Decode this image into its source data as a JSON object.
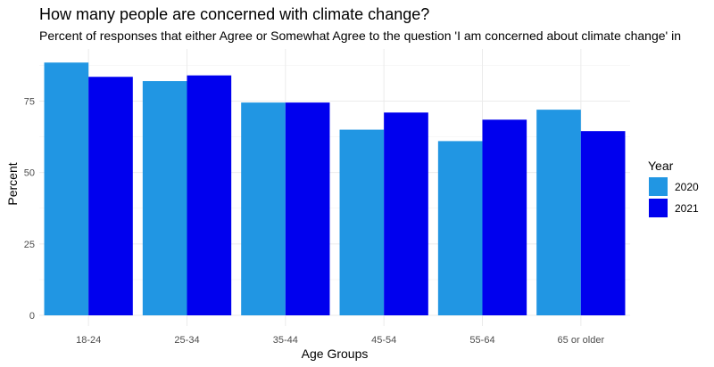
{
  "chart_data": {
    "type": "bar",
    "title": "How many people are concerned with climate change?",
    "subtitle": "Percent of responses that either Agree or Somewhat Agree to the question 'I am concerned about climate change' in",
    "xlabel": "Age Groups",
    "ylabel": "Percent",
    "categories": [
      "18-24",
      "25-34",
      "35-44",
      "45-54",
      "55-64",
      "65 or older"
    ],
    "series": [
      {
        "name": "2020",
        "color": "#2196e3",
        "values": [
          88.5,
          82,
          74.5,
          65,
          61,
          72
        ]
      },
      {
        "name": "2021",
        "color": "#0000ee",
        "values": [
          83.5,
          84,
          74.5,
          71,
          68.5,
          64.5
        ]
      }
    ],
    "ylim": [
      0,
      92
    ],
    "yticks": [
      0,
      25,
      50,
      75
    ],
    "legend": {
      "title": "Year",
      "placement": "right"
    },
    "grid": true
  }
}
